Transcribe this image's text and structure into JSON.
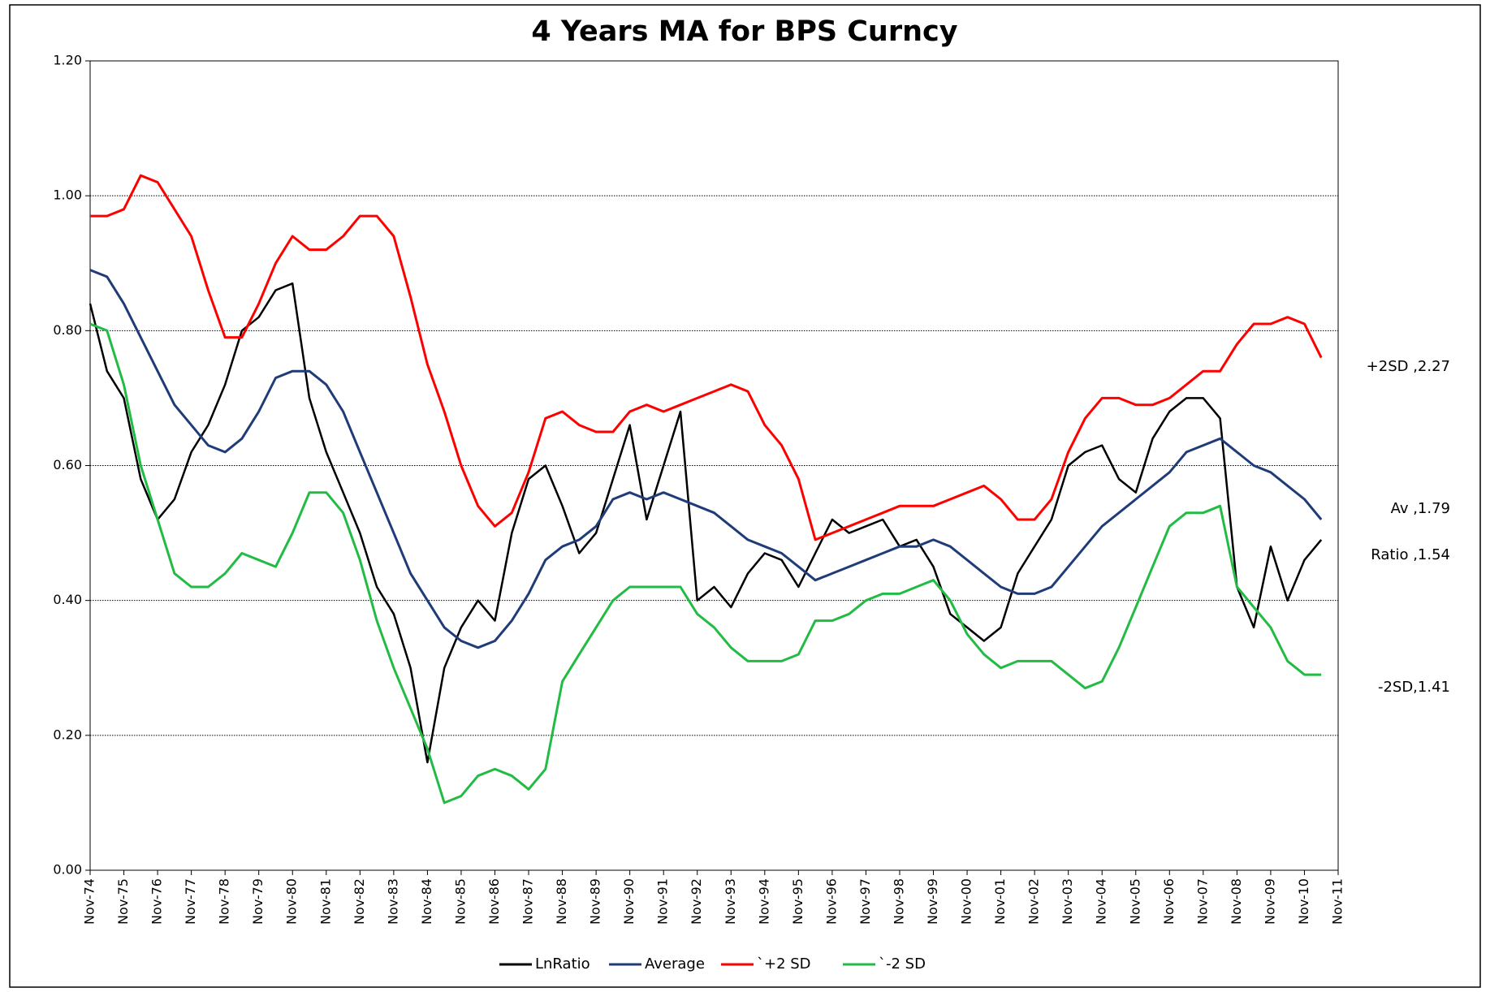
{
  "chart_data": {
    "type": "line",
    "title": "4 Years MA for BPS Curncy",
    "categories": [
      "Nov-74",
      null,
      "Nov-75",
      null,
      "Nov-76",
      null,
      "Nov-77",
      null,
      "Nov-78",
      null,
      "Nov-79",
      null,
      "Nov-80",
      null,
      "Nov-81",
      null,
      "Nov-82",
      null,
      "Nov-83",
      null,
      "Nov-84",
      null,
      "Nov-85",
      null,
      "Nov-86",
      null,
      "Nov-87",
      null,
      "Nov-88",
      null,
      "Nov-89",
      null,
      "Nov-90",
      null,
      "Nov-91",
      null,
      "Nov-92",
      null,
      "Nov-93",
      null,
      "Nov-94",
      null,
      "Nov-95",
      null,
      "Nov-96",
      null,
      "Nov-97",
      null,
      "Nov-98",
      null,
      "Nov-99",
      null,
      "Nov-00",
      null,
      "Nov-01",
      null,
      "Nov-02",
      null,
      "Nov-03",
      null,
      "Nov-04",
      null,
      "Nov-05",
      null,
      "Nov-06",
      null,
      "Nov-07",
      null,
      "Nov-08",
      null,
      "Nov-09",
      null,
      "Nov-10",
      null,
      "Nov-11"
    ],
    "series": [
      {
        "name": "LnRatio",
        "color": "#000000",
        "values": [
          0.84,
          0.74,
          0.7,
          0.58,
          0.52,
          0.55,
          0.62,
          0.66,
          0.72,
          0.8,
          0.82,
          0.86,
          0.87,
          0.7,
          0.62,
          0.56,
          0.5,
          0.42,
          0.38,
          0.3,
          0.16,
          0.3,
          0.36,
          0.4,
          0.37,
          0.5,
          0.58,
          0.6,
          0.54,
          0.47,
          0.5,
          0.58,
          0.66,
          0.52,
          0.6,
          0.68,
          0.4,
          0.42,
          0.39,
          0.44,
          0.47,
          0.46,
          0.42,
          0.47,
          0.52,
          0.5,
          0.51,
          0.52,
          0.48,
          0.49,
          0.45,
          0.38,
          0.36,
          0.34,
          0.36,
          0.44,
          0.48,
          0.52,
          0.6,
          0.62,
          0.63,
          0.58,
          0.56,
          0.64,
          0.68,
          0.7,
          0.7,
          0.67,
          0.42,
          0.36,
          0.48,
          0.4,
          0.46,
          0.49,
          null
        ]
      },
      {
        "name": "Average",
        "color": "#1f3c78",
        "values": [
          0.89,
          0.88,
          0.84,
          0.79,
          0.74,
          0.69,
          0.66,
          0.63,
          0.62,
          0.64,
          0.68,
          0.73,
          0.74,
          0.74,
          0.72,
          0.68,
          0.62,
          0.56,
          0.5,
          0.44,
          0.4,
          0.36,
          0.34,
          0.33,
          0.34,
          0.37,
          0.41,
          0.46,
          0.48,
          0.49,
          0.51,
          0.55,
          0.56,
          0.55,
          0.56,
          0.55,
          0.54,
          0.53,
          0.51,
          0.49,
          0.48,
          0.47,
          0.45,
          0.43,
          0.44,
          0.45,
          0.46,
          0.47,
          0.48,
          0.48,
          0.49,
          0.48,
          0.46,
          0.44,
          0.42,
          0.41,
          0.41,
          0.42,
          0.45,
          0.48,
          0.51,
          0.53,
          0.55,
          0.57,
          0.59,
          0.62,
          0.63,
          0.64,
          0.62,
          0.6,
          0.59,
          0.57,
          0.55,
          0.52,
          null
        ]
      },
      {
        "name": "`+2 SD",
        "color": "#ff0000",
        "values": [
          0.97,
          0.97,
          0.98,
          1.03,
          1.02,
          0.98,
          0.94,
          0.86,
          0.79,
          0.79,
          0.84,
          0.9,
          0.94,
          0.92,
          0.92,
          0.94,
          0.97,
          0.97,
          0.94,
          0.85,
          0.75,
          0.68,
          0.6,
          0.54,
          0.51,
          0.53,
          0.59,
          0.67,
          0.68,
          0.66,
          0.65,
          0.65,
          0.68,
          0.69,
          0.68,
          0.69,
          0.7,
          0.71,
          0.72,
          0.71,
          0.66,
          0.63,
          0.58,
          0.49,
          0.5,
          0.51,
          0.52,
          0.53,
          0.54,
          0.54,
          0.54,
          0.55,
          0.56,
          0.57,
          0.55,
          0.52,
          0.52,
          0.55,
          0.62,
          0.67,
          0.7,
          0.7,
          0.69,
          0.69,
          0.7,
          0.72,
          0.74,
          0.74,
          0.78,
          0.81,
          0.81,
          0.82,
          0.81,
          0.76,
          null
        ]
      },
      {
        "name": "`-2 SD",
        "color": "#22bb44",
        "values": [
          0.81,
          0.8,
          0.72,
          0.6,
          0.52,
          0.44,
          0.42,
          0.42,
          0.44,
          0.47,
          0.46,
          0.45,
          0.5,
          0.56,
          0.56,
          0.53,
          0.46,
          0.37,
          0.3,
          0.24,
          0.18,
          0.1,
          0.11,
          0.14,
          0.15,
          0.14,
          0.12,
          0.15,
          0.28,
          0.32,
          0.36,
          0.4,
          0.42,
          0.42,
          0.42,
          0.42,
          0.38,
          0.36,
          0.33,
          0.31,
          0.31,
          0.31,
          0.32,
          0.37,
          0.37,
          0.38,
          0.4,
          0.41,
          0.41,
          0.42,
          0.43,
          0.4,
          0.35,
          0.32,
          0.3,
          0.31,
          0.31,
          0.31,
          0.29,
          0.27,
          0.28,
          0.33,
          0.39,
          0.45,
          0.51,
          0.53,
          0.53,
          0.54,
          0.42,
          0.39,
          0.36,
          0.31,
          0.29,
          0.29,
          null
        ]
      }
    ],
    "ylim": [
      0,
      1.2
    ],
    "yticks": [
      {
        "value": 0,
        "label": "0.00"
      },
      {
        "value": 0.2,
        "label": "0.20"
      },
      {
        "value": 0.4,
        "label": "0.40"
      },
      {
        "value": 0.6,
        "label": "0.60"
      },
      {
        "value": 0.8,
        "label": "0.80"
      },
      {
        "value": 1,
        "label": "1.00"
      },
      {
        "value": 1.2,
        "label": "1.20"
      }
    ],
    "grid": true,
    "legend": "bottom",
    "annotations": [
      "+2SD ,2.27",
      "Av ,1.79",
      "Ratio ,1.54",
      "-2SD,1.41"
    ]
  }
}
